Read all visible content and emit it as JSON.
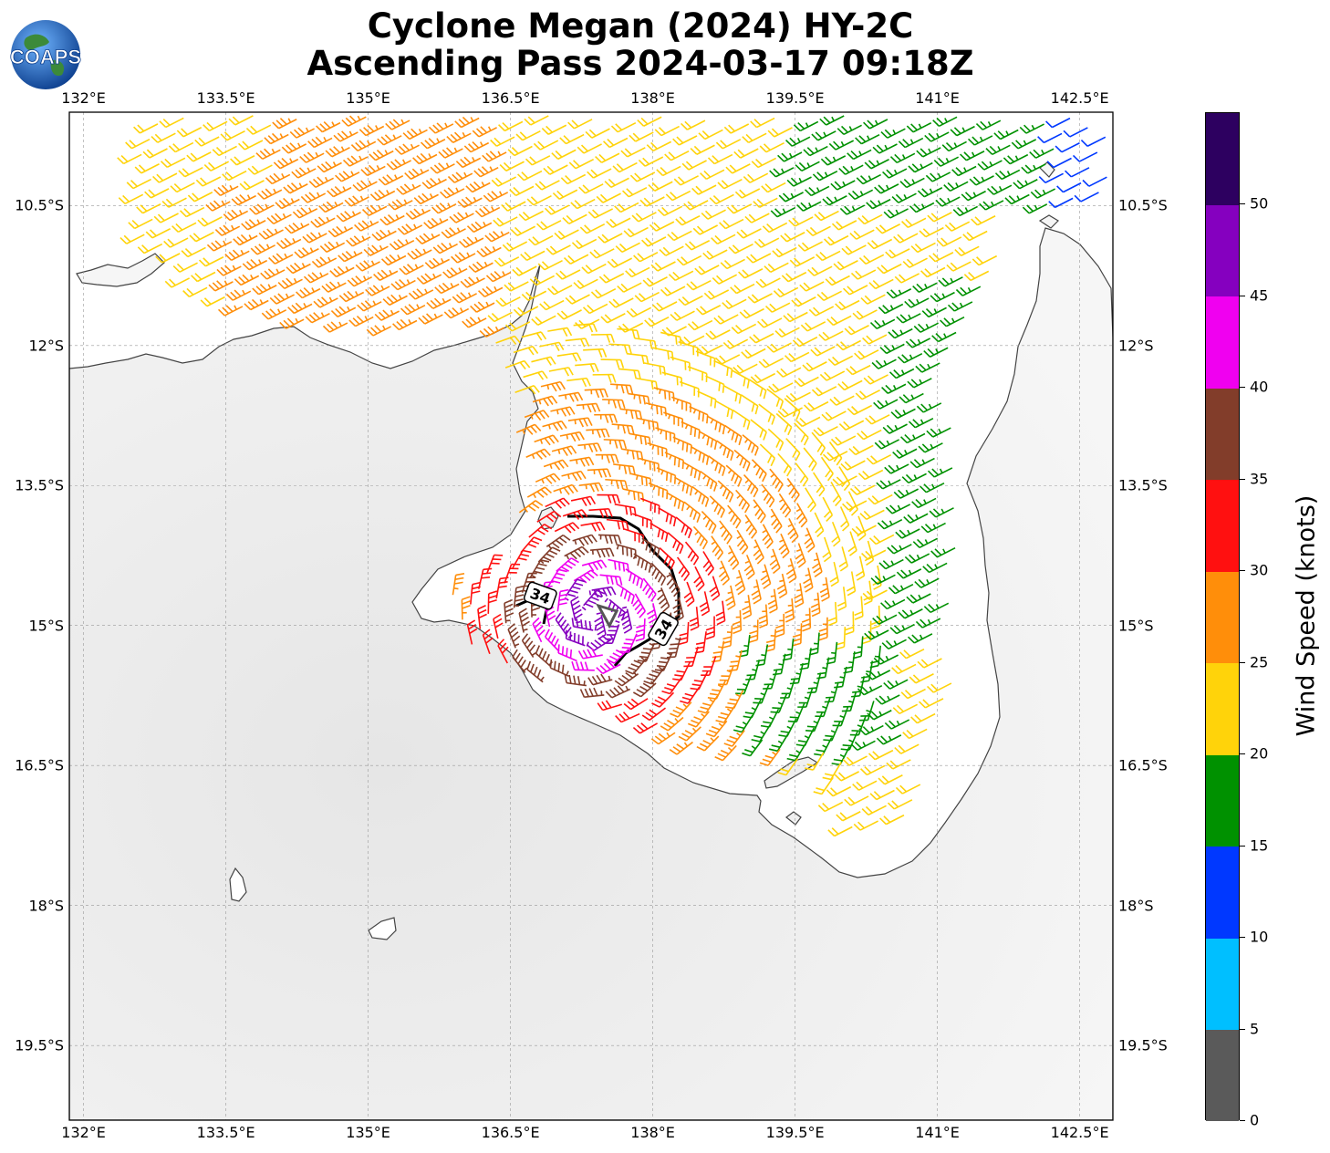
{
  "title": {
    "line1": "Cyclone Megan (2024) HY-2C",
    "line2": "Ascending Pass 2024-03-17 09:18Z"
  },
  "logo": {
    "text": "COAPS",
    "icon": "globe-logo-icon"
  },
  "map": {
    "lon_range": [
      131.85,
      142.85
    ],
    "lat_range": [
      -20.3,
      -9.5
    ],
    "lon_ticks": [
      {
        "value": 132.0,
        "label": "132°E"
      },
      {
        "value": 133.5,
        "label": "133.5°E"
      },
      {
        "value": 135.0,
        "label": "135°E"
      },
      {
        "value": 136.5,
        "label": "136.5°E"
      },
      {
        "value": 138.0,
        "label": "138°E"
      },
      {
        "value": 139.5,
        "label": "139.5°E"
      },
      {
        "value": 141.0,
        "label": "141°E"
      },
      {
        "value": 142.5,
        "label": "142.5°E"
      }
    ],
    "lat_ticks": [
      {
        "value": -10.5,
        "label": "10.5°S"
      },
      {
        "value": -12.0,
        "label": "12°S"
      },
      {
        "value": -13.5,
        "label": "13.5°S"
      },
      {
        "value": -15.0,
        "label": "15°S"
      },
      {
        "value": -16.5,
        "label": "16.5°S"
      },
      {
        "value": -18.0,
        "label": "18°S"
      },
      {
        "value": -19.5,
        "label": "19.5°S"
      }
    ],
    "grid": true,
    "contour_label": "34",
    "center_marker": "storm-center-icon"
  },
  "colorbar": {
    "title": "Wind Speed (knots)",
    "ticks": [
      "0",
      "5",
      "10",
      "15",
      "20",
      "25",
      "30",
      "35",
      "40",
      "45",
      "50"
    ],
    "bins": [
      {
        "min": 0,
        "max": 5,
        "color": "#5a5a5a"
      },
      {
        "min": 5,
        "max": 10,
        "color": "#00bfff"
      },
      {
        "min": 10,
        "max": 15,
        "color": "#0038ff"
      },
      {
        "min": 15,
        "max": 20,
        "color": "#009100"
      },
      {
        "min": 20,
        "max": 25,
        "color": "#ffd30a"
      },
      {
        "min": 25,
        "max": 30,
        "color": "#ff8e0a"
      },
      {
        "min": 30,
        "max": 35,
        "color": "#ff1010"
      },
      {
        "min": 35,
        "max": 40,
        "color": "#823d2a"
      },
      {
        "min": 40,
        "max": 45,
        "color": "#f000f0"
      },
      {
        "min": 45,
        "max": 50,
        "color": "#8500bf"
      },
      {
        "min": 50,
        "max": 55,
        "color": "#2d0060"
      }
    ]
  },
  "storm_center": {
    "lon": 137.4,
    "lat": -14.9
  }
}
